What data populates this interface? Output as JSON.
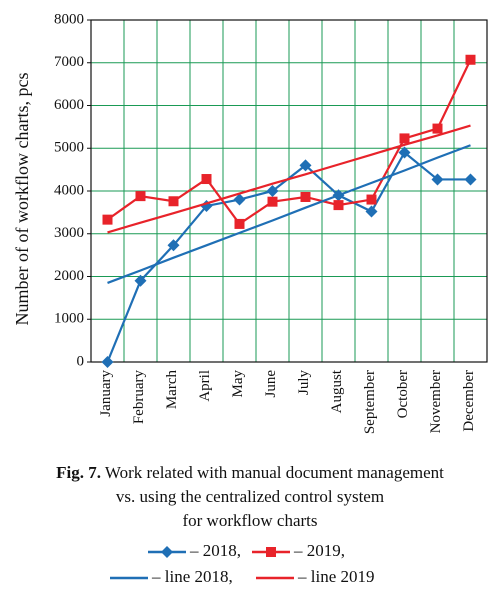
{
  "chart_data": {
    "type": "line",
    "y_label": "Number of of workflow charts, pcs",
    "categories": [
      "January",
      "February",
      "March",
      "April",
      "May",
      "June",
      "July",
      "August",
      "September",
      "October",
      "November",
      "December"
    ],
    "series": [
      {
        "name": "– 2018,",
        "color": "#1f6fb5",
        "marker": "diamond",
        "values": [
          0,
          1900,
          2730,
          3650,
          3800,
          4000,
          4600,
          3900,
          3520,
          4900,
          4270,
          4270
        ]
      },
      {
        "name": "– 2019,",
        "color": "#e8232a",
        "marker": "square",
        "values": [
          3330,
          3880,
          3760,
          4280,
          3230,
          3750,
          3860,
          3670,
          3800,
          5230,
          5460,
          7070
        ]
      },
      {
        "name": "– line 2018,",
        "color": "#1f6fb5",
        "values": [
          1850,
          2140,
          2440,
          2730,
          3020,
          3310,
          3610,
          3900,
          4190,
          4480,
          4780,
          5070
        ]
      },
      {
        "name": "– line 2019",
        "color": "#e8232a",
        "values": [
          3030,
          3260,
          3480,
          3710,
          3940,
          4170,
          4390,
          4620,
          4850,
          5080,
          5300,
          5530
        ]
      }
    ],
    "ylim": [
      0,
      8000
    ],
    "yticks": [
      0,
      1000,
      2000,
      3000,
      4000,
      5000,
      6000,
      7000,
      8000
    ],
    "grid": true,
    "grid_color": "#1a9a55",
    "caption": {
      "label": "Fig. 7.",
      "lines": [
        "Work related with manual document management",
        "vs. using the centralized control system",
        "for workflow charts"
      ]
    }
  }
}
